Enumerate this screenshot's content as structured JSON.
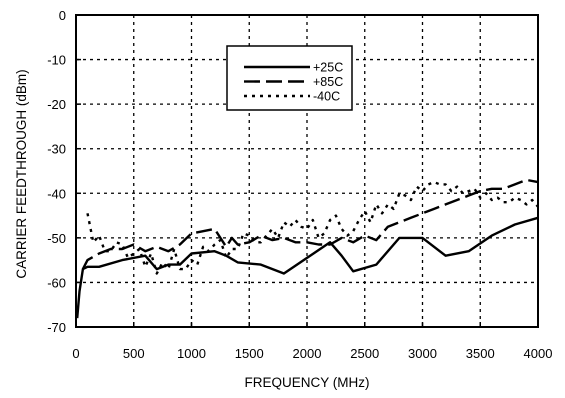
{
  "chart_data": {
    "type": "line",
    "xlabel": "FREQUENCY (MHz)",
    "ylabel": "CARRIER FEEDTHROUGH (dBm)",
    "xlim": [
      0,
      4000
    ],
    "ylim": [
      -70,
      0
    ],
    "xticks": [
      0,
      500,
      1000,
      1500,
      2000,
      2500,
      3000,
      3500,
      4000
    ],
    "yticks": [
      0,
      -10,
      -20,
      -30,
      -40,
      -50,
      -60,
      -70
    ],
    "grid": true,
    "legend_position": "top-center",
    "series": [
      {
        "name": "+25C",
        "style": "solid",
        "x": [
          10,
          30,
          60,
          100,
          200,
          400,
          600,
          700,
          800,
          900,
          1000,
          1200,
          1300,
          1400,
          1600,
          1800,
          2000,
          2200,
          2300,
          2400,
          2600,
          2800,
          3000,
          3200,
          3400,
          3600,
          3800,
          4000
        ],
        "y": [
          -68,
          -62,
          -57,
          -56.5,
          -56.5,
          -55,
          -54,
          -57,
          -56,
          -56,
          -53.5,
          -53,
          -54,
          -55.5,
          -56,
          -58,
          -54.5,
          -51,
          -54,
          -57.5,
          -56,
          -50,
          -50,
          -54,
          -53,
          -49.5,
          -47,
          -45.5
        ]
      },
      {
        "name": "+85C",
        "style": "dashed",
        "x": [
          60,
          100,
          200,
          300,
          400,
          500,
          600,
          700,
          800,
          900,
          1000,
          1100,
          1200,
          1300,
          1350,
          1400,
          1500,
          1600,
          1700,
          1800,
          1900,
          2000,
          2100,
          2200,
          2300,
          2400,
          2500,
          2600,
          2700,
          2800,
          2900,
          3000,
          3100,
          3200,
          3300,
          3400,
          3500,
          3600,
          3700,
          3800,
          3900,
          4000
        ],
        "y": [
          -57,
          -55,
          -53.5,
          -52.5,
          -52.5,
          -51.5,
          -53,
          -52,
          -53,
          -51.5,
          -49,
          -48.5,
          -48,
          -52,
          -50,
          -51.5,
          -51,
          -49.5,
          -50.5,
          -50,
          -51,
          -51,
          -51.5,
          -51.5,
          -50,
          -51,
          -49.5,
          -50.5,
          -47.5,
          -46.5,
          -45.5,
          -44.5,
          -43.5,
          -42.5,
          -41.5,
          -40.5,
          -39.5,
          -39,
          -39,
          -38,
          -37,
          -37.5
        ]
      },
      {
        "name": "-40C",
        "style": "dotted",
        "x": [
          100,
          150,
          200,
          250,
          300,
          350,
          400,
          450,
          500,
          550,
          600,
          650,
          700,
          750,
          800,
          850,
          900,
          950,
          1000,
          1050,
          1100,
          1150,
          1200,
          1250,
          1300,
          1350,
          1400,
          1450,
          1500,
          1550,
          1600,
          1650,
          1700,
          1750,
          1800,
          1850,
          1900,
          1950,
          2000,
          2050,
          2100,
          2150,
          2200,
          2250,
          2300,
          2350,
          2400,
          2450,
          2500,
          2550,
          2600,
          2650,
          2700,
          2750,
          2800,
          2850,
          2900,
          2950,
          3000,
          3050,
          3100,
          3150,
          3200,
          3250,
          3300,
          3350,
          3400,
          3450,
          3500,
          3550,
          3600,
          3650,
          3700,
          3750,
          3800,
          3850,
          3900,
          3950,
          4000
        ],
        "y": [
          -44.5,
          -51,
          -49.5,
          -53,
          -53,
          -51,
          -51.5,
          -54.5,
          -53.5,
          -52.5,
          -56.5,
          -53.5,
          -58,
          -55.5,
          -57,
          -52.5,
          -57,
          -57,
          -55,
          -56,
          -52,
          -53,
          -51.5,
          -50.5,
          -54.5,
          -52.5,
          -52.5,
          -49,
          -49.5,
          -51,
          -51,
          -49.5,
          -48,
          -50,
          -46.5,
          -47.5,
          -46,
          -47.5,
          -48,
          -46,
          -50,
          -49,
          -46,
          -45,
          -48,
          -49.5,
          -48.5,
          -46,
          -44,
          -46.5,
          -42.5,
          -44.5,
          -42.5,
          -43.5,
          -40,
          -40.5,
          -41.5,
          -38.5,
          -39.5,
          -38,
          -37.5,
          -38,
          -38,
          -39.5,
          -38.5,
          -40,
          -39.5,
          -39,
          -41,
          -40,
          -41.5,
          -41,
          -42,
          -42,
          -41,
          -41.5,
          -42.5,
          -41.5,
          -43
        ]
      }
    ]
  }
}
